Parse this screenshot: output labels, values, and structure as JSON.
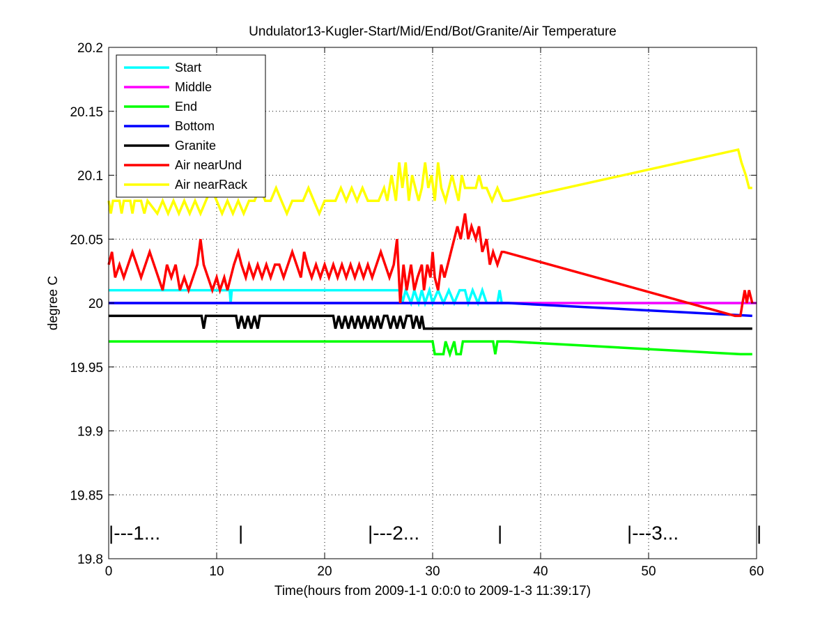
{
  "chart_data": {
    "type": "line",
    "title": "Undulator13-Kugler-Start/Mid/End/Bot/Granite/Air Temperature",
    "xlabel": "Time(hours from 2009-1-1 0:0:0 to 2009-1-3 11:39:17)",
    "ylabel": "degree C",
    "xlim": [
      0,
      60
    ],
    "ylim": [
      19.8,
      20.2
    ],
    "xticks": [
      0,
      10,
      20,
      30,
      40,
      50,
      60
    ],
    "yticks": [
      19.8,
      19.85,
      19.9,
      19.95,
      20,
      20.05,
      20.1,
      20.15,
      20.2
    ],
    "ytick_labels": [
      "19.8",
      "19.85",
      "19.9",
      "19.95",
      "20",
      "20.05",
      "20.1",
      "20.15",
      "20.2"
    ],
    "grid": true,
    "legend_position": "top-left",
    "series": [
      {
        "name": "Start",
        "color": "#00ffff",
        "points": [
          [
            0,
            20.01
          ],
          [
            11.2,
            20.01
          ],
          [
            11.3,
            20.0
          ],
          [
            11.4,
            20.01
          ],
          [
            27,
            20.01
          ],
          [
            27.2,
            20.0
          ],
          [
            27.5,
            20.01
          ],
          [
            28,
            20.0
          ],
          [
            28.3,
            20.01
          ],
          [
            28.7,
            20.0
          ],
          [
            29,
            20.01
          ],
          [
            29.3,
            20.0
          ],
          [
            29.7,
            20.01
          ],
          [
            30,
            20.0
          ],
          [
            30.5,
            20.01
          ],
          [
            31,
            20.0
          ],
          [
            31.5,
            20.01
          ],
          [
            32,
            20.0
          ],
          [
            32.5,
            20.01
          ],
          [
            33,
            20.01
          ],
          [
            33.3,
            20.0
          ],
          [
            33.7,
            20.01
          ],
          [
            34.2,
            20.0
          ],
          [
            34.6,
            20.01
          ],
          [
            35,
            20.0
          ],
          [
            35.5,
            20.0
          ],
          [
            36,
            20.0
          ],
          [
            36.2,
            20.01
          ],
          [
            36.4,
            20.0
          ],
          [
            60,
            20.0
          ]
        ]
      },
      {
        "name": "Middle",
        "color": "#ff00ff",
        "points": [
          [
            0,
            20.0
          ],
          [
            60,
            20.0
          ]
        ]
      },
      {
        "name": "End",
        "color": "#00ff00",
        "points": [
          [
            0,
            19.97
          ],
          [
            30,
            19.97
          ],
          [
            30.2,
            19.96
          ],
          [
            31,
            19.96
          ],
          [
            31.2,
            19.97
          ],
          [
            31.6,
            19.96
          ],
          [
            32,
            19.97
          ],
          [
            32.2,
            19.96
          ],
          [
            32.6,
            19.96
          ],
          [
            32.8,
            19.97
          ],
          [
            35.6,
            19.97
          ],
          [
            35.8,
            19.96
          ],
          [
            36,
            19.97
          ],
          [
            37,
            19.97
          ],
          [
            58.5,
            19.96
          ],
          [
            59.6,
            19.96
          ]
        ]
      },
      {
        "name": "Bottom",
        "color": "#0000ff",
        "points": [
          [
            0,
            20.0
          ],
          [
            37,
            20.0
          ],
          [
            59.6,
            19.99
          ]
        ]
      },
      {
        "name": "Granite",
        "color": "#000000",
        "points": [
          [
            0,
            19.99
          ],
          [
            8.6,
            19.99
          ],
          [
            8.8,
            19.98
          ],
          [
            9,
            19.99
          ],
          [
            11.8,
            19.99
          ],
          [
            12,
            19.98
          ],
          [
            12.3,
            19.99
          ],
          [
            12.6,
            19.98
          ],
          [
            12.9,
            19.99
          ],
          [
            13.2,
            19.98
          ],
          [
            13.5,
            19.99
          ],
          [
            13.8,
            19.98
          ],
          [
            14,
            19.99
          ],
          [
            20.8,
            19.99
          ],
          [
            21,
            19.98
          ],
          [
            21.3,
            19.99
          ],
          [
            21.6,
            19.98
          ],
          [
            21.9,
            19.99
          ],
          [
            22.2,
            19.98
          ],
          [
            22.5,
            19.99
          ],
          [
            22.8,
            19.98
          ],
          [
            23.1,
            19.99
          ],
          [
            23.4,
            19.98
          ],
          [
            23.7,
            19.99
          ],
          [
            24,
            19.98
          ],
          [
            24.3,
            19.99
          ],
          [
            24.6,
            19.98
          ],
          [
            24.9,
            19.99
          ],
          [
            25.2,
            19.98
          ],
          [
            25.5,
            19.99
          ],
          [
            25.8,
            19.99
          ],
          [
            26.1,
            19.98
          ],
          [
            26.4,
            19.99
          ],
          [
            26.7,
            19.98
          ],
          [
            27,
            19.99
          ],
          [
            27.3,
            19.98
          ],
          [
            27.6,
            19.99
          ],
          [
            28,
            19.99
          ],
          [
            28.2,
            19.98
          ],
          [
            28.5,
            19.99
          ],
          [
            28.8,
            19.98
          ],
          [
            29,
            19.99
          ],
          [
            29.2,
            19.98
          ],
          [
            59.6,
            19.98
          ]
        ]
      },
      {
        "name": "Air nearUnd",
        "color": "#ff0000",
        "points": [
          [
            0,
            20.03
          ],
          [
            0.3,
            20.04
          ],
          [
            0.6,
            20.02
          ],
          [
            1,
            20.03
          ],
          [
            1.4,
            20.02
          ],
          [
            1.8,
            20.03
          ],
          [
            2.2,
            20.04
          ],
          [
            2.6,
            20.03
          ],
          [
            3,
            20.02
          ],
          [
            3.4,
            20.03
          ],
          [
            3.8,
            20.04
          ],
          [
            4.2,
            20.03
          ],
          [
            4.6,
            20.02
          ],
          [
            5,
            20.01
          ],
          [
            5.4,
            20.03
          ],
          [
            5.8,
            20.02
          ],
          [
            6.2,
            20.03
          ],
          [
            6.6,
            20.01
          ],
          [
            7,
            20.02
          ],
          [
            7.4,
            20.01
          ],
          [
            7.8,
            20.02
          ],
          [
            8.2,
            20.03
          ],
          [
            8.5,
            20.05
          ],
          [
            8.8,
            20.03
          ],
          [
            9.2,
            20.02
          ],
          [
            9.6,
            20.01
          ],
          [
            10,
            20.02
          ],
          [
            10.3,
            20.01
          ],
          [
            10.7,
            20.02
          ],
          [
            11,
            20.01
          ],
          [
            11.3,
            20.02
          ],
          [
            11.6,
            20.03
          ],
          [
            12,
            20.04
          ],
          [
            12.3,
            20.03
          ],
          [
            12.7,
            20.02
          ],
          [
            13,
            20.03
          ],
          [
            13.4,
            20.02
          ],
          [
            13.8,
            20.03
          ],
          [
            14.2,
            20.02
          ],
          [
            14.6,
            20.03
          ],
          [
            15,
            20.02
          ],
          [
            15.4,
            20.03
          ],
          [
            15.8,
            20.03
          ],
          [
            16.2,
            20.02
          ],
          [
            16.6,
            20.03
          ],
          [
            17,
            20.04
          ],
          [
            17.4,
            20.03
          ],
          [
            17.8,
            20.02
          ],
          [
            18.1,
            20.04
          ],
          [
            18.4,
            20.03
          ],
          [
            18.8,
            20.02
          ],
          [
            19.2,
            20.03
          ],
          [
            19.6,
            20.02
          ],
          [
            20,
            20.03
          ],
          [
            20.4,
            20.02
          ],
          [
            20.8,
            20.03
          ],
          [
            21.2,
            20.02
          ],
          [
            21.6,
            20.03
          ],
          [
            22,
            20.02
          ],
          [
            22.4,
            20.03
          ],
          [
            22.8,
            20.02
          ],
          [
            23.2,
            20.03
          ],
          [
            23.6,
            20.02
          ],
          [
            24,
            20.03
          ],
          [
            24.4,
            20.02
          ],
          [
            24.8,
            20.03
          ],
          [
            25.2,
            20.04
          ],
          [
            25.6,
            20.03
          ],
          [
            26,
            20.02
          ],
          [
            26.4,
            20.03
          ],
          [
            26.7,
            20.05
          ],
          [
            27,
            20.0
          ],
          [
            27.3,
            20.03
          ],
          [
            27.6,
            20.01
          ],
          [
            28,
            20.03
          ],
          [
            28.3,
            20.01
          ],
          [
            28.6,
            20.02
          ],
          [
            29,
            20.03
          ],
          [
            29.2,
            20.01
          ],
          [
            29.5,
            20.03
          ],
          [
            29.8,
            20.02
          ],
          [
            30,
            20.04
          ],
          [
            30.2,
            20.02
          ],
          [
            30.5,
            20.01
          ],
          [
            30.8,
            20.03
          ],
          [
            31.1,
            20.02
          ],
          [
            31.4,
            20.03
          ],
          [
            31.7,
            20.04
          ],
          [
            32,
            20.05
          ],
          [
            32.3,
            20.06
          ],
          [
            32.6,
            20.05
          ],
          [
            33,
            20.07
          ],
          [
            33.3,
            20.05
          ],
          [
            33.6,
            20.06
          ],
          [
            34,
            20.05
          ],
          [
            34.3,
            20.06
          ],
          [
            34.6,
            20.04
          ],
          [
            35,
            20.05
          ],
          [
            35.3,
            20.03
          ],
          [
            35.6,
            20.04
          ],
          [
            36,
            20.03
          ],
          [
            36.4,
            20.04
          ],
          [
            36.6,
            20.04
          ],
          [
            58,
            19.99
          ],
          [
            58.5,
            19.99
          ],
          [
            58.7,
            20.0
          ],
          [
            58.9,
            20.01
          ],
          [
            59.1,
            20.0
          ],
          [
            59.3,
            20.01
          ],
          [
            59.6,
            20.0
          ]
        ]
      },
      {
        "name": "Air nearRack",
        "color": "#ffff00",
        "points": [
          [
            0,
            20.08
          ],
          [
            0.2,
            20.07
          ],
          [
            0.4,
            20.08
          ],
          [
            1,
            20.08
          ],
          [
            1.2,
            20.07
          ],
          [
            1.4,
            20.08
          ],
          [
            2,
            20.08
          ],
          [
            2.2,
            20.07
          ],
          [
            2.4,
            20.08
          ],
          [
            3,
            20.08
          ],
          [
            3.3,
            20.07
          ],
          [
            3.6,
            20.08
          ],
          [
            4.5,
            20.07
          ],
          [
            5,
            20.08
          ],
          [
            5.5,
            20.07
          ],
          [
            6,
            20.08
          ],
          [
            6.5,
            20.07
          ],
          [
            7,
            20.08
          ],
          [
            7.5,
            20.07
          ],
          [
            8,
            20.08
          ],
          [
            8.5,
            20.07
          ],
          [
            9,
            20.08
          ],
          [
            9.5,
            20.09
          ],
          [
            10,
            20.08
          ],
          [
            10.5,
            20.07
          ],
          [
            11,
            20.08
          ],
          [
            11.5,
            20.07
          ],
          [
            12,
            20.08
          ],
          [
            12.5,
            20.07
          ],
          [
            13,
            20.08
          ],
          [
            13.5,
            20.08
          ],
          [
            14,
            20.09
          ],
          [
            14.5,
            20.08
          ],
          [
            15,
            20.08
          ],
          [
            15.5,
            20.09
          ],
          [
            16,
            20.08
          ],
          [
            16.5,
            20.07
          ],
          [
            17,
            20.08
          ],
          [
            18,
            20.08
          ],
          [
            18.5,
            20.09
          ],
          [
            19,
            20.08
          ],
          [
            19.5,
            20.07
          ],
          [
            20,
            20.08
          ],
          [
            21,
            20.08
          ],
          [
            21.5,
            20.09
          ],
          [
            22,
            20.08
          ],
          [
            22.5,
            20.09
          ],
          [
            23,
            20.08
          ],
          [
            23.5,
            20.09
          ],
          [
            24,
            20.08
          ],
          [
            25,
            20.08
          ],
          [
            25.5,
            20.09
          ],
          [
            25.8,
            20.08
          ],
          [
            26.2,
            20.1
          ],
          [
            26.6,
            20.08
          ],
          [
            26.9,
            20.11
          ],
          [
            27.2,
            20.09
          ],
          [
            27.5,
            20.11
          ],
          [
            27.8,
            20.08
          ],
          [
            28.1,
            20.1
          ],
          [
            28.4,
            20.09
          ],
          [
            28.7,
            20.08
          ],
          [
            29,
            20.09
          ],
          [
            29.3,
            20.11
          ],
          [
            29.6,
            20.09
          ],
          [
            29.9,
            20.1
          ],
          [
            30.2,
            20.08
          ],
          [
            30.5,
            20.11
          ],
          [
            30.8,
            20.09
          ],
          [
            31.2,
            20.08
          ],
          [
            31.5,
            20.09
          ],
          [
            31.8,
            20.1
          ],
          [
            32.1,
            20.09
          ],
          [
            32.4,
            20.08
          ],
          [
            32.7,
            20.1
          ],
          [
            33,
            20.09
          ],
          [
            33.5,
            20.09
          ],
          [
            34,
            20.09
          ],
          [
            34.3,
            20.1
          ],
          [
            34.6,
            20.09
          ],
          [
            35,
            20.09
          ],
          [
            35.5,
            20.08
          ],
          [
            36,
            20.09
          ],
          [
            36.5,
            20.08
          ],
          [
            37,
            20.08
          ],
          [
            58.3,
            20.12
          ],
          [
            58.6,
            20.11
          ],
          [
            59,
            20.1
          ],
          [
            59.3,
            20.09
          ],
          [
            59.6,
            20.09
          ]
        ]
      }
    ],
    "annotations": [
      {
        "text": "|---1...",
        "x": 0,
        "y": 19.82
      },
      {
        "text": "|",
        "x": 12,
        "y": 19.82
      },
      {
        "text": "|---2...",
        "x": 24,
        "y": 19.82
      },
      {
        "text": "|",
        "x": 36,
        "y": 19.82
      },
      {
        "text": "|---3...",
        "x": 48,
        "y": 19.82
      },
      {
        "text": "|",
        "x": 60,
        "y": 19.82
      }
    ]
  }
}
